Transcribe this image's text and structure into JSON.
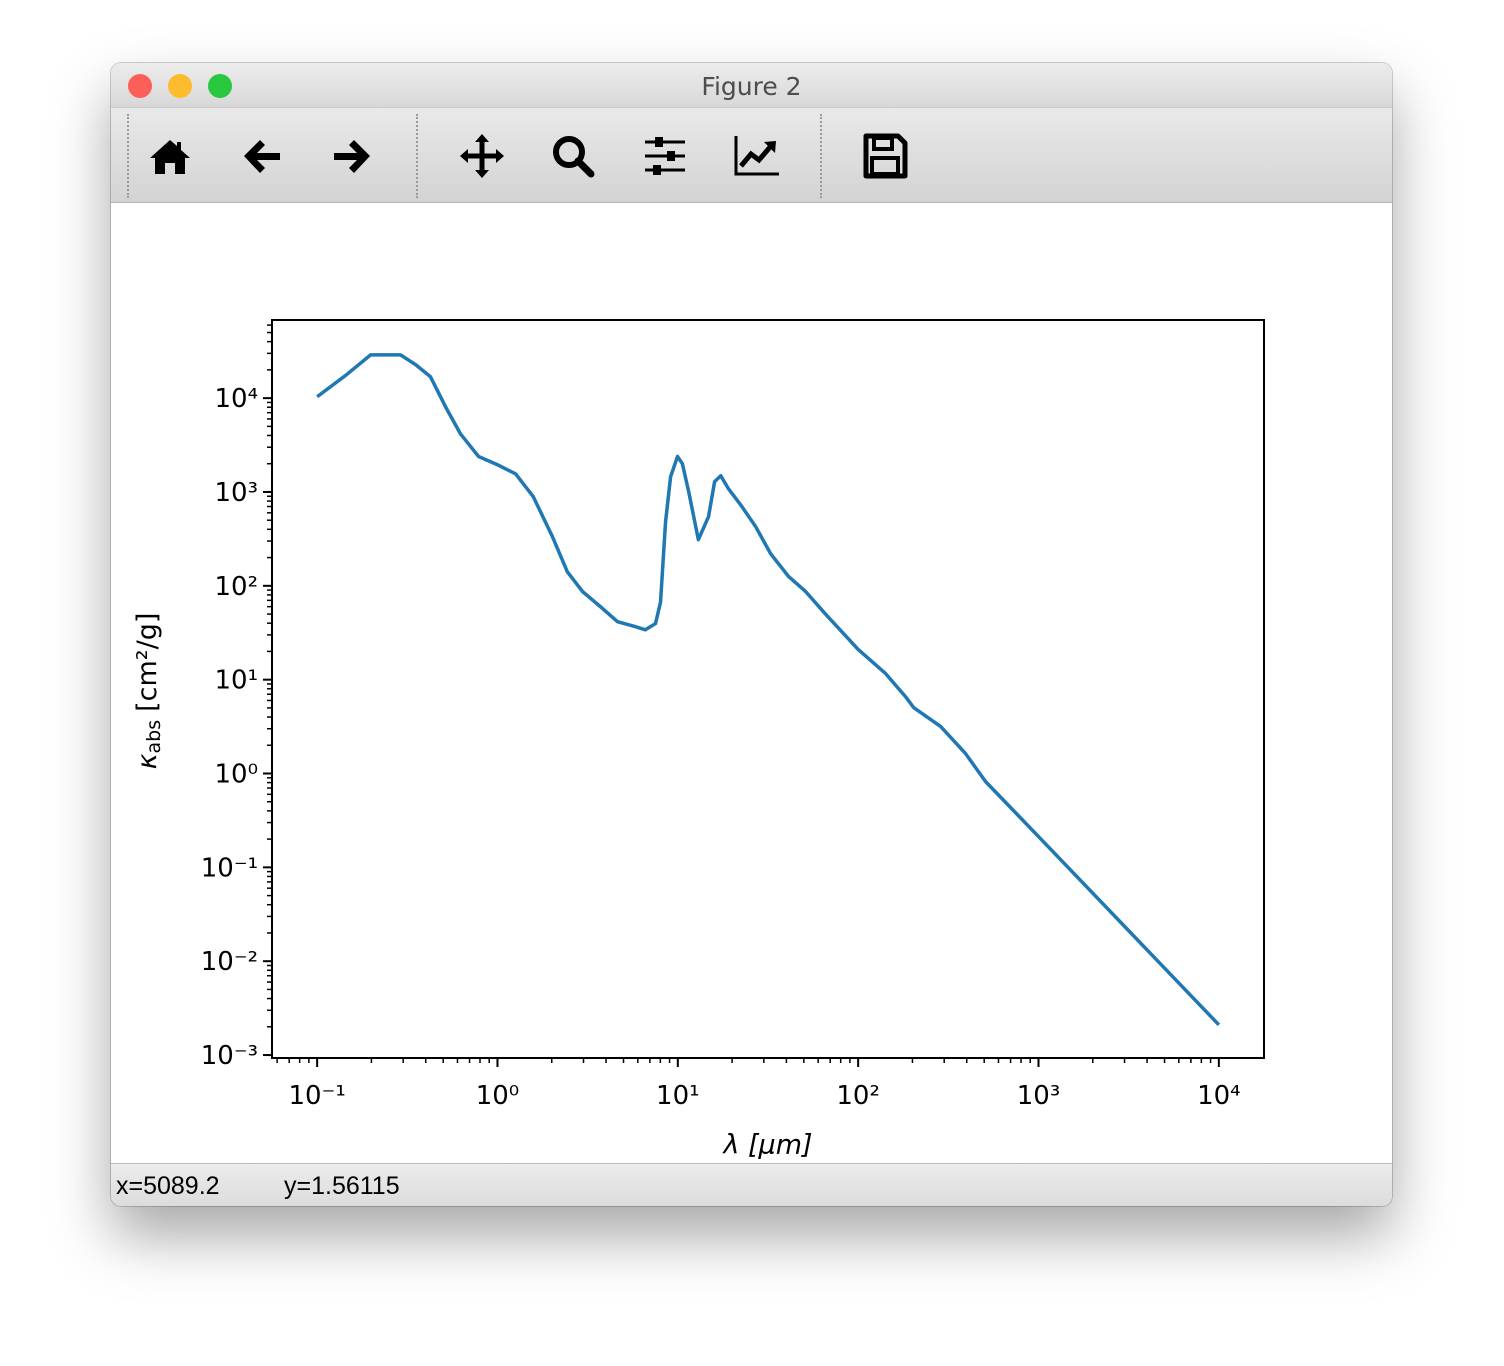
{
  "window": {
    "title": "Figure 2"
  },
  "status": {
    "x": "x=5089.2",
    "y": "y=1.56115"
  },
  "chart_data": {
    "type": "line",
    "xlabel": "λ [μm]",
    "ylabel": {
      "symbol": "κ",
      "subscript": "abs",
      "unit": "[cm²/g]"
    },
    "log_x": true,
    "log_y": true,
    "minor_ticks": true,
    "xlim": [
      0.0562,
      17800
    ],
    "ylim": [
      0.00093,
      68000
    ],
    "xticks": [
      {
        "value": 0.1,
        "label": "10⁻¹"
      },
      {
        "value": 1,
        "label": "10⁰"
      },
      {
        "value": 10,
        "label": "10¹"
      },
      {
        "value": 100,
        "label": "10²"
      },
      {
        "value": 1000,
        "label": "10³"
      },
      {
        "value": 10000,
        "label": "10⁴"
      }
    ],
    "yticks": [
      {
        "value": 0.001,
        "label": "10⁻³"
      },
      {
        "value": 0.01,
        "label": "10⁻²"
      },
      {
        "value": 0.1,
        "label": "10⁻¹"
      },
      {
        "value": 1,
        "label": "10⁰"
      },
      {
        "value": 10,
        "label": "10¹"
      },
      {
        "value": 100,
        "label": "10²"
      },
      {
        "value": 1000,
        "label": "10³"
      },
      {
        "value": 10000,
        "label": "10⁴"
      }
    ],
    "color": "#1f77b4",
    "x": [
      0.1,
      0.1435,
      0.198,
      0.29,
      0.351,
      0.425,
      0.515,
      0.624,
      0.785,
      1.0,
      1.26,
      1.58,
      2.02,
      2.44,
      2.96,
      3.72,
      4.63,
      5.83,
      6.61,
      7.52,
      8.02,
      8.55,
      9.12,
      9.96,
      10.6,
      11.5,
      13.0,
      14.8,
      16.0,
      17.3,
      19.1,
      22.3,
      27.0,
      32.7,
      41.1,
      51.1,
      65.9,
      100,
      142,
      183,
      203,
      287,
      394,
      509,
      1000,
      10000
    ],
    "values": [
      10350,
      17400,
      28900,
      28900,
      22800,
      16900,
      8100,
      4150,
      2390,
      1950,
      1560,
      890,
      332,
      141,
      87,
      60,
      41.5,
      36.7,
      34,
      39.6,
      67,
      480,
      1450,
      2390,
      2000,
      1000,
      310,
      545,
      1290,
      1490,
      1080,
      730,
      428,
      220,
      126,
      87,
      50,
      21,
      11.6,
      6.6,
      5.05,
      3.16,
      1.63,
      0.82,
      0.213,
      0.0021
    ]
  }
}
